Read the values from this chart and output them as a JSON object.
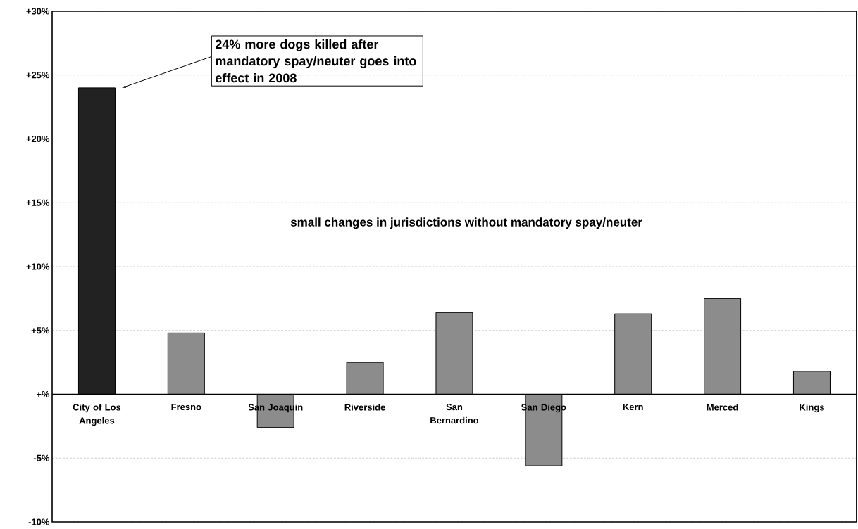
{
  "chart_data": {
    "type": "bar",
    "categories": [
      "City of Los Angeles",
      "Fresno",
      "San Joaquin",
      "Riverside",
      "San Bernardino",
      "San Diego",
      "Kern",
      "Merced",
      "Kings"
    ],
    "values": [
      24.0,
      4.8,
      -2.6,
      2.5,
      6.4,
      -5.6,
      6.3,
      7.5,
      1.8
    ],
    "colors": [
      "#222222",
      "#8c8c8c",
      "#8c8c8c",
      "#8c8c8c",
      "#8c8c8c",
      "#8c8c8c",
      "#8c8c8c",
      "#8c8c8c",
      "#8c8c8c"
    ],
    "ylim": [
      -10,
      30
    ],
    "yticks": [
      {
        "value": -10,
        "label": "-10%"
      },
      {
        "value": -5,
        "label": "-5%"
      },
      {
        "value": 0,
        "label": "+%"
      },
      {
        "value": 5,
        "label": "+5%"
      },
      {
        "value": 10,
        "label": "+10%"
      },
      {
        "value": 15,
        "label": "+15%"
      },
      {
        "value": 20,
        "label": "+20%"
      },
      {
        "value": 25,
        "label": "+25%"
      },
      {
        "value": 30,
        "label": "+30%"
      }
    ],
    "grid": "y",
    "annotations": [
      "24% more dogs killed after mandatory spay/neuter goes into effect in 2008",
      "small changes in jurisdictions without mandatory spay/neuter"
    ]
  }
}
